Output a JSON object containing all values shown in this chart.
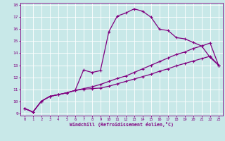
{
  "xlabel": "Windchill (Refroidissement éolien,°C)",
  "bg_color": "#c8e8e8",
  "line_color": "#800080",
  "grid_color": "#ffffff",
  "xlim": [
    -0.5,
    23.5
  ],
  "ylim": [
    8.8,
    18.2
  ],
  "yticks": [
    9,
    10,
    11,
    12,
    13,
    14,
    15,
    16,
    17,
    18
  ],
  "xticks": [
    0,
    1,
    2,
    3,
    4,
    5,
    6,
    7,
    8,
    9,
    10,
    11,
    12,
    13,
    14,
    15,
    16,
    17,
    18,
    19,
    20,
    21,
    22,
    23
  ],
  "line1_x": [
    0,
    1,
    2,
    3,
    4,
    5,
    6,
    7,
    8,
    9,
    10,
    11,
    12,
    13,
    14,
    15,
    16,
    17,
    18,
    19,
    20,
    21,
    22,
    23
  ],
  "line1_y": [
    9.4,
    9.1,
    10.0,
    10.4,
    10.55,
    10.7,
    10.9,
    12.6,
    12.4,
    12.55,
    15.8,
    17.1,
    17.35,
    17.7,
    17.5,
    17.0,
    16.0,
    15.9,
    15.3,
    15.2,
    14.9,
    14.6,
    13.65,
    13.0
  ],
  "line2_x": [
    0,
    1,
    2,
    3,
    4,
    5,
    6,
    7,
    8,
    9,
    10,
    11,
    12,
    13,
    14,
    15,
    16,
    17,
    18,
    19,
    20,
    21,
    22,
    23
  ],
  "line2_y": [
    9.4,
    9.1,
    10.0,
    10.4,
    10.55,
    10.7,
    10.9,
    11.05,
    11.2,
    11.4,
    11.65,
    11.9,
    12.1,
    12.4,
    12.7,
    13.0,
    13.3,
    13.6,
    13.9,
    14.1,
    14.4,
    14.6,
    14.85,
    13.0
  ],
  "line3_x": [
    0,
    1,
    2,
    3,
    4,
    5,
    6,
    7,
    8,
    9,
    10,
    11,
    12,
    13,
    14,
    15,
    16,
    17,
    18,
    19,
    20,
    21,
    22,
    23
  ],
  "line3_y": [
    9.4,
    9.1,
    10.0,
    10.4,
    10.55,
    10.7,
    10.9,
    11.0,
    11.05,
    11.1,
    11.25,
    11.45,
    11.65,
    11.85,
    12.05,
    12.25,
    12.5,
    12.7,
    12.95,
    13.15,
    13.35,
    13.55,
    13.75,
    13.0
  ]
}
